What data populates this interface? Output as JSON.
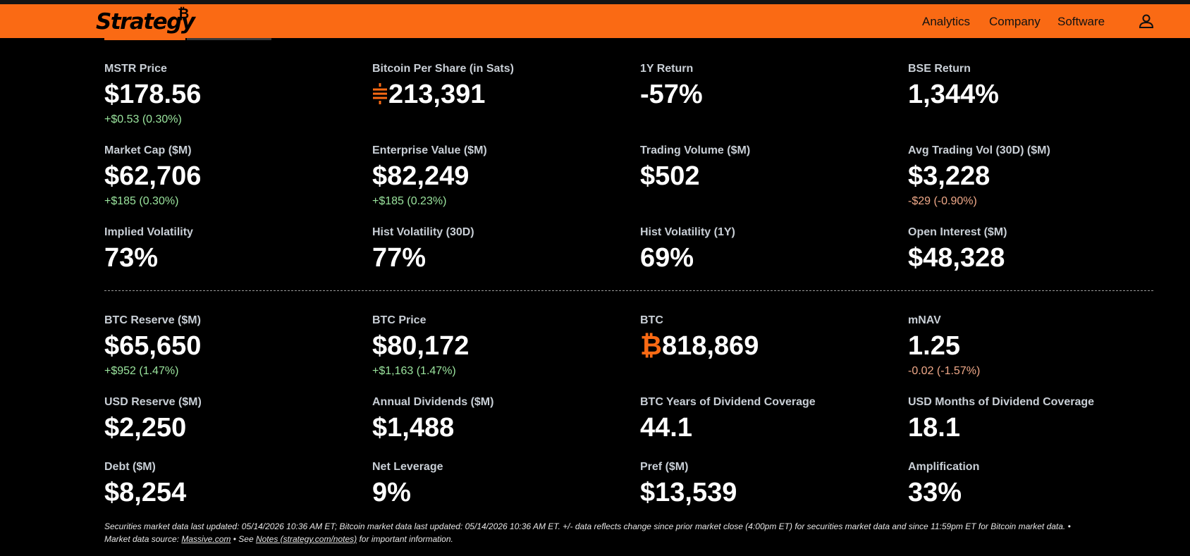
{
  "nav": {
    "logo_text": "Strategy",
    "logo_mark": "₿",
    "links": [
      "Analytics",
      "Company",
      "Software"
    ],
    "user_icon": "user-icon"
  },
  "metrics": [
    {
      "label": "MSTR Price",
      "value": "$178.56",
      "change": "+$0.53 (0.30%)",
      "change_dir": "pos"
    },
    {
      "label": "Bitcoin Per Share (in Sats)",
      "value_prefix": "sats-icon",
      "value": "213,391"
    },
    {
      "label": "1Y Return",
      "value": "-57%"
    },
    {
      "label": "BSE Return",
      "value": "1,344%"
    },
    {
      "label": "Market Cap ($M)",
      "value": "$62,706",
      "change": "+$185 (0.30%)",
      "change_dir": "pos"
    },
    {
      "label": "Enterprise Value ($M)",
      "value": "$82,249",
      "change": "+$185 (0.23%)",
      "change_dir": "pos"
    },
    {
      "label": "Trading Volume ($M)",
      "value": "$502"
    },
    {
      "label": "Avg Trading Vol (30D) ($M)",
      "value": "$3,228",
      "change": "-$29 (-0.90%)",
      "change_dir": "neg"
    },
    {
      "label": "Implied Volatility",
      "value": "73%"
    },
    {
      "label": "Hist Volatility (30D)",
      "value": "77%"
    },
    {
      "label": "Hist Volatility (1Y)",
      "value": "69%"
    },
    {
      "label": "Open Interest ($M)",
      "value": "$48,328"
    },
    {
      "label": "BTC Reserve ($M)",
      "value": "$65,650",
      "change": "+$952 (1.47%)",
      "change_dir": "pos"
    },
    {
      "label": "BTC Price",
      "value": "$80,172",
      "change": "+$1,163 (1.47%)",
      "change_dir": "pos"
    },
    {
      "label": "BTC",
      "value_symbol": "₿",
      "value": "818,869"
    },
    {
      "label": "mNAV",
      "value": "1.25",
      "change": "-0.02 (-1.57%)",
      "change_dir": "neg"
    },
    {
      "label": "USD Reserve ($M)",
      "value": "$2,250"
    },
    {
      "label": "Annual Dividends ($M)",
      "value": "$1,488"
    },
    {
      "label": "BTC Years of Dividend Coverage",
      "value": "44.1"
    },
    {
      "label": "USD Months of Dividend Coverage",
      "value": "18.1"
    },
    {
      "label": "Debt ($M)",
      "value": "$8,254"
    },
    {
      "label": "Net Leverage",
      "value": "9%"
    },
    {
      "label": "Pref ($M)",
      "value": "$13,539"
    },
    {
      "label": "Amplification",
      "value": "33%"
    }
  ],
  "footnote": {
    "line1": "Securities market data last updated: 05/14/2026 10:36 AM ET; Bitcoin market data last updated: 05/14/2026 10:36 AM ET. +/- data reflects change since prior market close (4:00pm ET) for securities market data and since 11:59pm ET for Bitcoin market data.  •",
    "source_prefix": "Market data source: ",
    "source_link": "Massive.com",
    "sep": "  •  See ",
    "notes_link": "Notes (strategy.com/notes)",
    "suffix": " for important information."
  }
}
